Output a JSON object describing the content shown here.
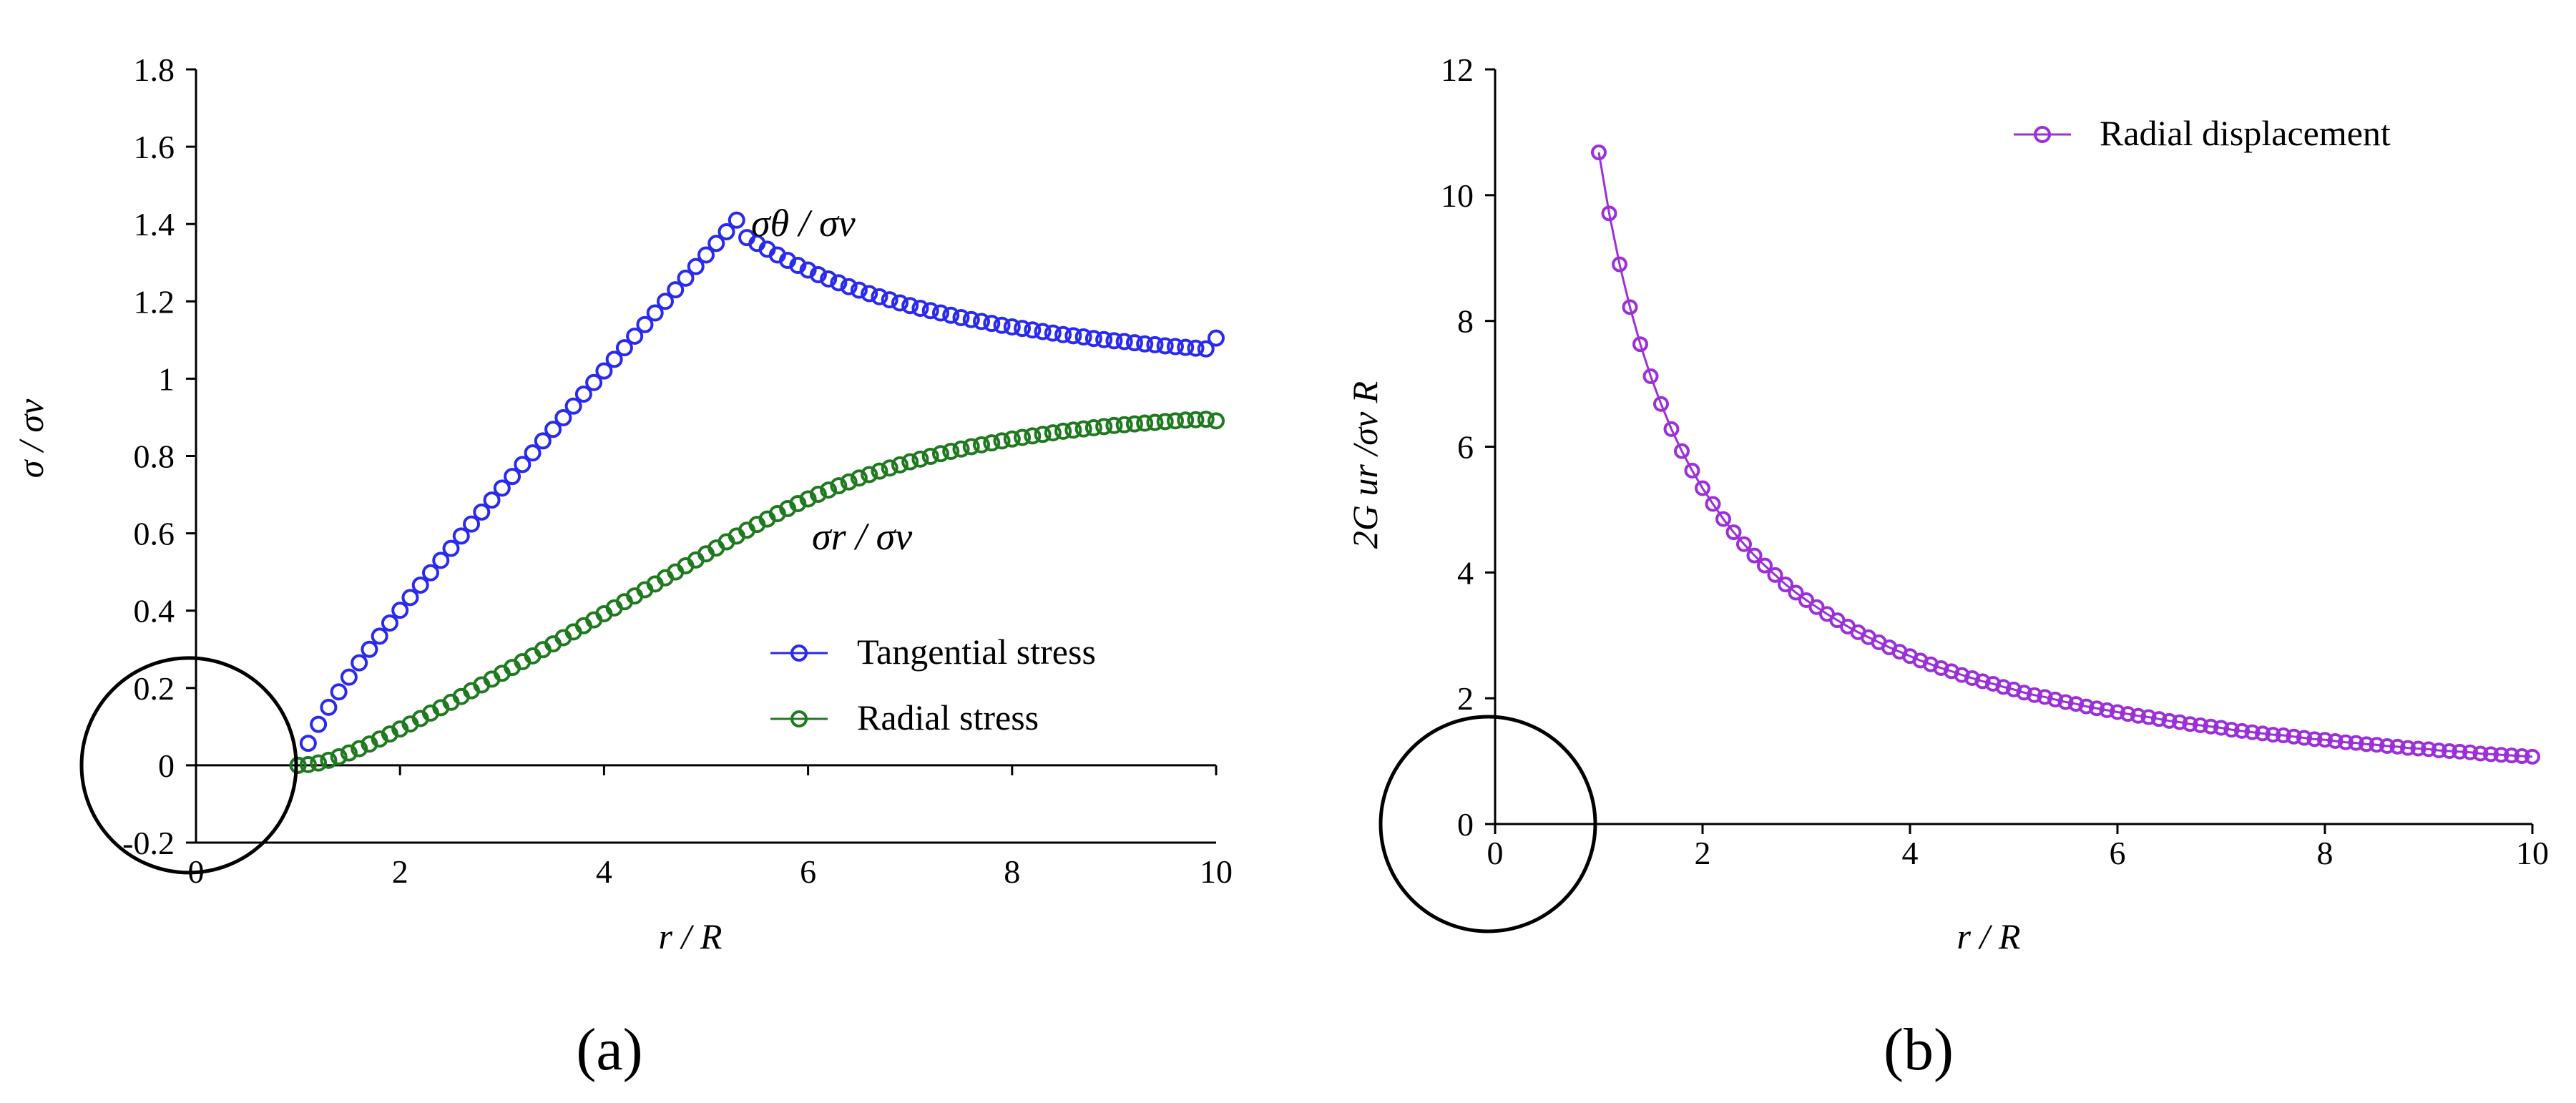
{
  "chart_data": [
    {
      "type": "scatter",
      "panel_label": "(a)",
      "xlabel": "r / R",
      "ylabel": "σ / σv",
      "xlim": [
        0,
        10
      ],
      "ylim": [
        -0.2,
        1.8
      ],
      "xticks": [
        0,
        2,
        4,
        6,
        8,
        10
      ],
      "xtick_labels": [
        "0",
        "2",
        "4",
        "6",
        "8",
        "10"
      ],
      "yticks": [
        -0.2,
        0,
        0.2,
        0.4,
        0.6,
        0.8,
        1,
        1.2,
        1.4,
        1.6,
        1.8
      ],
      "ytick_labels": [
        "-0.2",
        "0",
        "0.2",
        "0.4",
        "0.6",
        "0.8",
        "1",
        "1.2",
        "1.4",
        "1.6",
        "1.8"
      ],
      "legend_position": "lower-right",
      "annotations": [
        {
          "text": "σθ / σv",
          "near_series": "Tangential stress"
        },
        {
          "text": "σr / σv",
          "near_series": "Radial stress"
        }
      ],
      "highlight_circle_center": [
        0,
        0
      ],
      "series": [
        {
          "name": "Tangential stress",
          "color": "#2a2aee",
          "x": [
            1,
            1.1,
            1.2,
            1.3,
            1.4,
            1.5,
            1.6,
            1.7,
            1.8,
            1.9,
            2,
            2.1,
            2.2,
            2.3,
            2.4,
            2.5,
            2.6,
            2.7,
            2.8,
            2.9,
            3,
            3.1,
            3.2,
            3.3,
            3.4,
            3.5,
            3.6,
            3.7,
            3.8,
            3.9,
            4,
            4.1,
            4.2,
            4.3,
            4.4,
            4.5,
            4.6,
            4.7,
            4.8,
            4.9,
            5,
            5.1,
            5.2,
            5.3,
            5.4,
            5.5,
            5.6,
            5.7,
            5.8,
            5.9,
            6,
            6.1,
            6.2,
            6.3,
            6.4,
            6.5,
            6.6,
            6.7,
            6.8,
            6.9,
            7,
            7.1,
            7.2,
            7.3,
            7.4,
            7.5,
            7.6,
            7.7,
            7.8,
            7.9,
            8,
            8.1,
            8.2,
            8.3,
            8.4,
            8.5,
            8.6,
            8.7,
            8.8,
            8.9,
            9,
            9.1,
            9.2,
            9.3,
            9.4,
            9.5,
            9.6,
            9.7,
            9.8,
            9.9,
            10
          ],
          "y": [
            0,
            0.057,
            0.106,
            0.15,
            0.19,
            0.228,
            0.265,
            0.3,
            0.334,
            0.368,
            0.401,
            0.434,
            0.466,
            0.498,
            0.53,
            0.561,
            0.593,
            0.624,
            0.655,
            0.686,
            0.717,
            0.747,
            0.778,
            0.808,
            0.839,
            0.869,
            0.899,
            0.929,
            0.96,
            0.99,
            1.02,
            1.05,
            1.08,
            1.11,
            1.14,
            1.17,
            1.2,
            1.23,
            1.26,
            1.29,
            1.32,
            1.35,
            1.38,
            1.41,
            1.365,
            1.35,
            1.335,
            1.32,
            1.306,
            1.293,
            1.281,
            1.269,
            1.258,
            1.248,
            1.238,
            1.229,
            1.22,
            1.212,
            1.204,
            1.196,
            1.189,
            1.182,
            1.176,
            1.17,
            1.164,
            1.158,
            1.153,
            1.148,
            1.143,
            1.138,
            1.134,
            1.13,
            1.126,
            1.122,
            1.118,
            1.114,
            1.111,
            1.108,
            1.104,
            1.101,
            1.098,
            1.096,
            1.093,
            1.09,
            1.088,
            1.085,
            1.083,
            1.081,
            1.079,
            1.077,
            1.105
          ]
        },
        {
          "name": "Radial stress",
          "color": "#1f7a1f",
          "x": [
            1,
            1.1,
            1.2,
            1.3,
            1.4,
            1.5,
            1.6,
            1.7,
            1.8,
            1.9,
            2,
            2.1,
            2.2,
            2.3,
            2.4,
            2.5,
            2.6,
            2.7,
            2.8,
            2.9,
            3,
            3.1,
            3.2,
            3.3,
            3.4,
            3.5,
            3.6,
            3.7,
            3.8,
            3.9,
            4,
            4.1,
            4.2,
            4.3,
            4.4,
            4.5,
            4.6,
            4.7,
            4.8,
            4.9,
            5,
            5.1,
            5.2,
            5.3,
            5.4,
            5.5,
            5.6,
            5.7,
            5.8,
            5.9,
            6,
            6.1,
            6.2,
            6.3,
            6.4,
            6.5,
            6.6,
            6.7,
            6.8,
            6.9,
            7,
            7.1,
            7.2,
            7.3,
            7.4,
            7.5,
            7.6,
            7.7,
            7.8,
            7.9,
            8,
            8.1,
            8.2,
            8.3,
            8.4,
            8.5,
            8.6,
            8.7,
            8.8,
            8.9,
            9,
            9.1,
            9.2,
            9.3,
            9.4,
            9.5,
            9.6,
            9.7,
            9.8,
            9.9,
            10
          ],
          "y": [
            0,
            0.002,
            0.006,
            0.013,
            0.022,
            0.032,
            0.043,
            0.055,
            0.068,
            0.081,
            0.094,
            0.107,
            0.121,
            0.135,
            0.149,
            0.163,
            0.178,
            0.193,
            0.208,
            0.223,
            0.238,
            0.253,
            0.268,
            0.283,
            0.299,
            0.314,
            0.33,
            0.345,
            0.361,
            0.376,
            0.392,
            0.407,
            0.423,
            0.438,
            0.454,
            0.469,
            0.485,
            0.5,
            0.516,
            0.531,
            0.547,
            0.562,
            0.578,
            0.593,
            0.608,
            0.623,
            0.637,
            0.651,
            0.664,
            0.677,
            0.689,
            0.701,
            0.712,
            0.723,
            0.733,
            0.743,
            0.752,
            0.761,
            0.769,
            0.777,
            0.785,
            0.792,
            0.799,
            0.806,
            0.812,
            0.818,
            0.824,
            0.829,
            0.834,
            0.839,
            0.844,
            0.848,
            0.852,
            0.856,
            0.86,
            0.864,
            0.867,
            0.87,
            0.873,
            0.876,
            0.879,
            0.881,
            0.883,
            0.885,
            0.887,
            0.889,
            0.891,
            0.893,
            0.894,
            0.895,
            0.891
          ]
        }
      ]
    },
    {
      "type": "line",
      "panel_label": "(b)",
      "xlabel": "r / R",
      "ylabel": "2G ur /σv R",
      "xlim": [
        0,
        10
      ],
      "ylim": [
        0,
        12
      ],
      "xticks": [
        0,
        2,
        4,
        6,
        8,
        10
      ],
      "xtick_labels": [
        "0",
        "2",
        "4",
        "6",
        "8",
        "10"
      ],
      "yticks": [
        0,
        2,
        4,
        6,
        8,
        10,
        12
      ],
      "ytick_labels": [
        "0",
        "2",
        "4",
        "6",
        "8",
        "10",
        "12"
      ],
      "legend_position": "top-right",
      "highlight_circle_center": [
        0,
        0
      ],
      "series": [
        {
          "name": "Radial displacement",
          "color": "#9b30d9",
          "markers": true,
          "x": [
            1,
            1.1,
            1.2,
            1.3,
            1.4,
            1.5,
            1.6,
            1.7,
            1.8,
            1.9,
            2,
            2.1,
            2.2,
            2.3,
            2.4,
            2.5,
            2.6,
            2.7,
            2.8,
            2.9,
            3,
            3.1,
            3.2,
            3.3,
            3.4,
            3.5,
            3.6,
            3.7,
            3.8,
            3.9,
            4,
            4.1,
            4.2,
            4.3,
            4.4,
            4.5,
            4.6,
            4.7,
            4.8,
            4.9,
            5,
            5.1,
            5.2,
            5.3,
            5.4,
            5.5,
            5.6,
            5.7,
            5.8,
            5.9,
            6,
            6.1,
            6.2,
            6.3,
            6.4,
            6.5,
            6.6,
            6.7,
            6.8,
            6.9,
            7,
            7.1,
            7.2,
            7.3,
            7.4,
            7.5,
            7.6,
            7.7,
            7.8,
            7.9,
            8,
            8.1,
            8.2,
            8.3,
            8.4,
            8.5,
            8.6,
            8.7,
            8.8,
            8.9,
            9,
            9.1,
            9.2,
            9.3,
            9.4,
            9.5,
            9.6,
            9.7,
            9.8,
            9.9,
            10
          ],
          "y": [
            10.68,
            9.71,
            8.9,
            8.22,
            7.63,
            7.12,
            6.68,
            6.28,
            5.93,
            5.62,
            5.34,
            5.09,
            4.85,
            4.64,
            4.45,
            4.27,
            4.11,
            3.96,
            3.81,
            3.68,
            3.56,
            3.45,
            3.34,
            3.24,
            3.14,
            3.05,
            2.97,
            2.89,
            2.81,
            2.74,
            2.67,
            2.6,
            2.54,
            2.48,
            2.43,
            2.37,
            2.32,
            2.27,
            2.23,
            2.18,
            2.14,
            2.09,
            2.05,
            2.02,
            1.98,
            1.94,
            1.91,
            1.87,
            1.84,
            1.81,
            1.78,
            1.75,
            1.72,
            1.7,
            1.67,
            1.64,
            1.62,
            1.59,
            1.57,
            1.55,
            1.53,
            1.5,
            1.48,
            1.46,
            1.44,
            1.42,
            1.41,
            1.39,
            1.37,
            1.35,
            1.34,
            1.32,
            1.3,
            1.29,
            1.27,
            1.26,
            1.24,
            1.23,
            1.21,
            1.2,
            1.19,
            1.17,
            1.16,
            1.15,
            1.14,
            1.12,
            1.11,
            1.1,
            1.09,
            1.08,
            1.07
          ]
        }
      ]
    }
  ]
}
